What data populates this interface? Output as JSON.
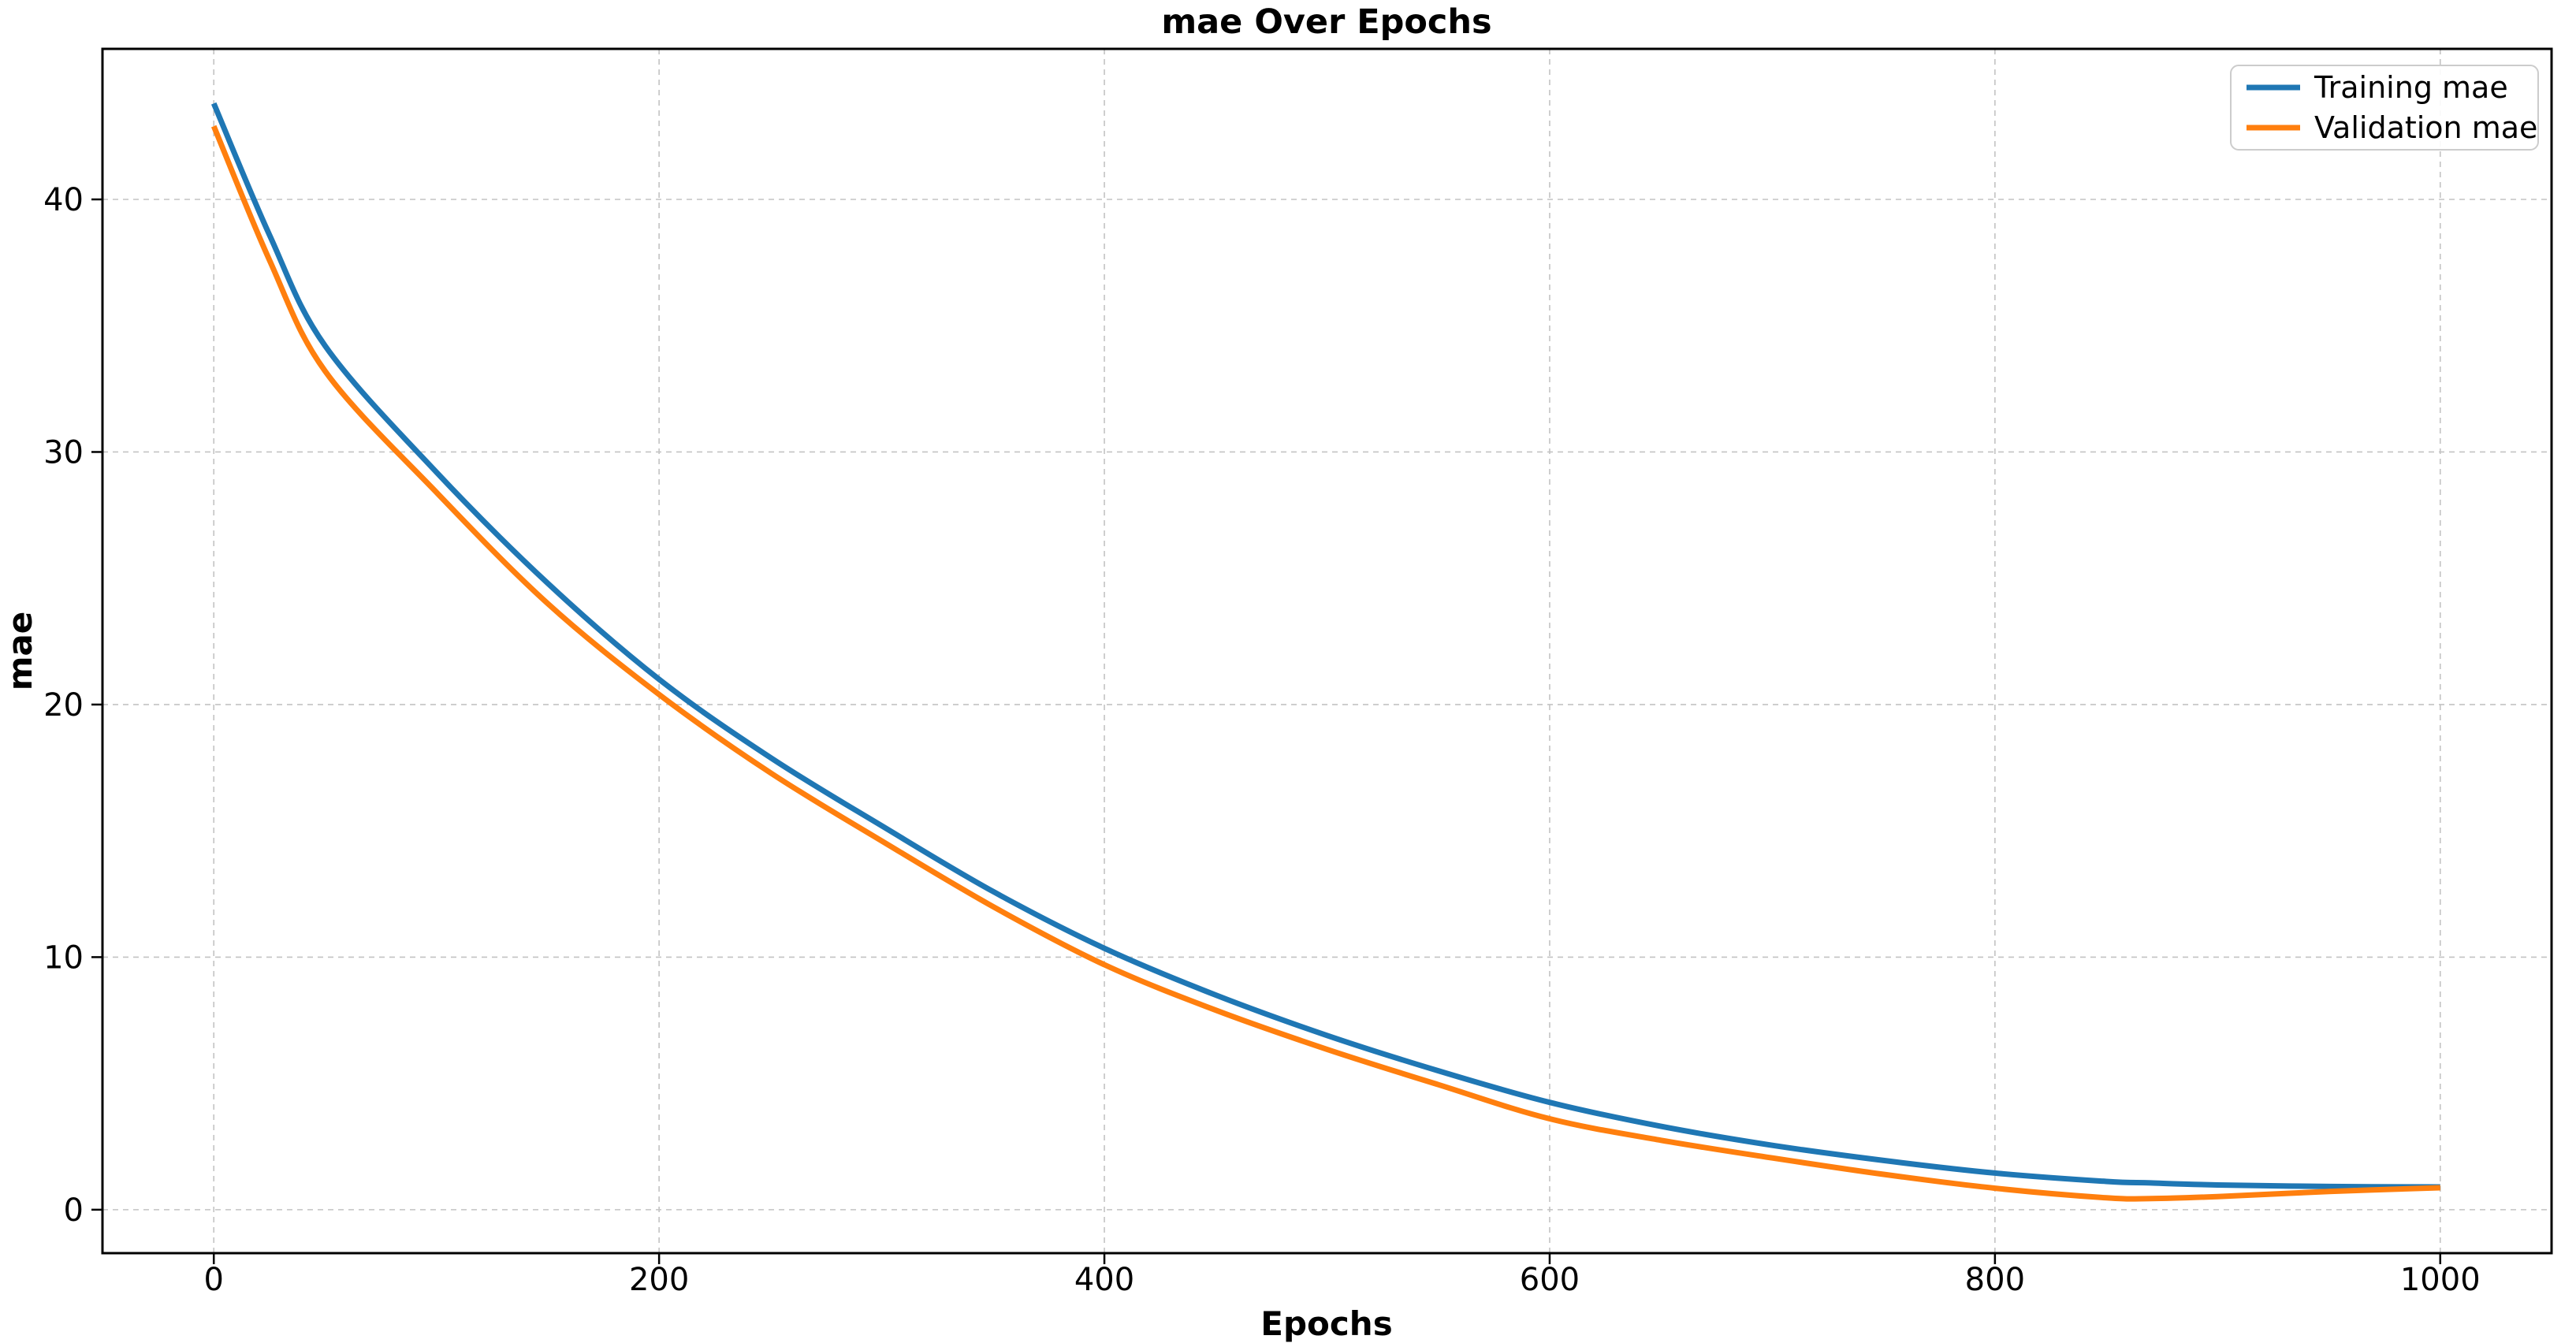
{
  "figure": {
    "background": "#ffffff"
  },
  "chart_data": {
    "type": "line",
    "title": "mae Over Epochs",
    "xlabel": "Epochs",
    "ylabel": "mae",
    "xlim": [
      -50,
      1050
    ],
    "ylim": [
      -1.72,
      45.96
    ],
    "x_ticks": [
      0,
      200,
      400,
      600,
      800,
      1000
    ],
    "y_ticks": [
      0,
      10,
      20,
      30,
      40
    ],
    "grid": true,
    "grid_style": "dashed",
    "legend_position": "upper right",
    "x": [
      0,
      25,
      50,
      100,
      150,
      200,
      250,
      300,
      350,
      400,
      450,
      500,
      550,
      600,
      650,
      700,
      750,
      800,
      850,
      870,
      900,
      950,
      1000
    ],
    "series": [
      {
        "name": "Training mae",
        "color": "#1f77b4",
        "values": [
          43.8,
          38.6,
          34.2,
          29.2,
          24.8,
          21.0,
          17.9,
          15.2,
          12.6,
          10.35,
          8.5,
          6.9,
          5.5,
          4.25,
          3.3,
          2.55,
          1.95,
          1.45,
          1.12,
          1.06,
          0.98,
          0.92,
          0.9
        ]
      },
      {
        "name": "Validation mae",
        "color": "#ff7f0e",
        "values": [
          42.9,
          37.6,
          33.2,
          28.4,
          24.0,
          20.4,
          17.3,
          14.6,
          12.0,
          9.7,
          7.9,
          6.35,
          4.95,
          3.6,
          2.75,
          2.05,
          1.4,
          0.85,
          0.47,
          0.44,
          0.52,
          0.72,
          0.87
        ]
      }
    ]
  },
  "colors": {
    "grid": "#c3c3c3",
    "axis": "#000000",
    "legend_border": "#cccccc",
    "background": "#ffffff"
  }
}
